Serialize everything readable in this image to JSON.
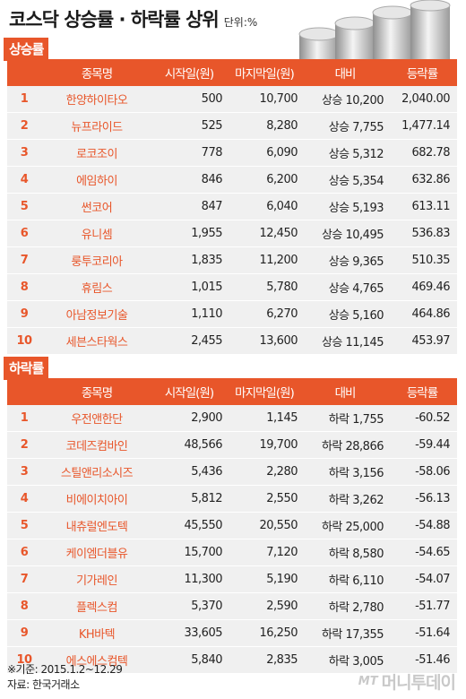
{
  "header": {
    "title": "코스닥 상승률 · 하락률 상위",
    "unit": "단위:%"
  },
  "columns": {
    "rank": "",
    "name": "종목명",
    "start": "시작일(원)",
    "end": "마지막일(원)",
    "diff": "대비",
    "rate": "등락률"
  },
  "gainers": {
    "label": "상승률",
    "rows": [
      {
        "rank": "1",
        "name": "한양하이타오",
        "start": "500",
        "end": "10,700",
        "diff": "상승 10,200",
        "rate": "2,040.00"
      },
      {
        "rank": "2",
        "name": "뉴프라이드",
        "start": "525",
        "end": "8,280",
        "diff": "상승 7,755",
        "rate": "1,477.14"
      },
      {
        "rank": "3",
        "name": "로코조이",
        "start": "778",
        "end": "6,090",
        "diff": "상승 5,312",
        "rate": "682.78"
      },
      {
        "rank": "4",
        "name": "에임하이",
        "start": "846",
        "end": "6,200",
        "diff": "상승 5,354",
        "rate": "632.86"
      },
      {
        "rank": "5",
        "name": "썬코어",
        "start": "847",
        "end": "6,040",
        "diff": "상승 5,193",
        "rate": "613.11"
      },
      {
        "rank": "6",
        "name": "유니셈",
        "start": "1,955",
        "end": "12,450",
        "diff": "상승 10,495",
        "rate": "536.83"
      },
      {
        "rank": "7",
        "name": "룽투코리아",
        "start": "1,835",
        "end": "11,200",
        "diff": "상승 9,365",
        "rate": "510.35"
      },
      {
        "rank": "8",
        "name": "휴림스",
        "start": "1,015",
        "end": "5,780",
        "diff": "상승 4,765",
        "rate": "469.46"
      },
      {
        "rank": "9",
        "name": "아남정보기술",
        "start": "1,110",
        "end": "6,270",
        "diff": "상승 5,160",
        "rate": "464.86"
      },
      {
        "rank": "10",
        "name": "세븐스타웍스",
        "start": "2,455",
        "end": "13,600",
        "diff": "상승 11,145",
        "rate": "453.97"
      }
    ]
  },
  "losers": {
    "label": "하락률",
    "rows": [
      {
        "rank": "1",
        "name": "우전앤한단",
        "start": "2,900",
        "end": "1,145",
        "diff": "하락 1,755",
        "rate": "-60.52"
      },
      {
        "rank": "2",
        "name": "코데즈컴바인",
        "start": "48,566",
        "end": "19,700",
        "diff": "하락 28,866",
        "rate": "-59.44"
      },
      {
        "rank": "3",
        "name": "스틸앤리소시즈",
        "start": "5,436",
        "end": "2,280",
        "diff": "하락 3,156",
        "rate": "-58.06"
      },
      {
        "rank": "4",
        "name": "비에이치아이",
        "start": "5,812",
        "end": "2,550",
        "diff": "하락 3,262",
        "rate": "-56.13"
      },
      {
        "rank": "5",
        "name": "내츄럴엔도텍",
        "start": "45,550",
        "end": "20,550",
        "diff": "하락 25,000",
        "rate": "-54.88"
      },
      {
        "rank": "6",
        "name": "케이엠더블유",
        "start": "15,700",
        "end": "7,120",
        "diff": "하락 8,580",
        "rate": "-54.65"
      },
      {
        "rank": "7",
        "name": "기가레인",
        "start": "11,300",
        "end": "5,190",
        "diff": "하락 6,110",
        "rate": "-54.07"
      },
      {
        "rank": "8",
        "name": "플렉스컴",
        "start": "5,370",
        "end": "2,590",
        "diff": "하락 2,780",
        "rate": "-51.77"
      },
      {
        "rank": "9",
        "name": "KH바텍",
        "start": "33,605",
        "end": "16,250",
        "diff": "하락 17,355",
        "rate": "-51.64"
      },
      {
        "rank": "10",
        "name": "에스에스컴텍",
        "start": "5,840",
        "end": "2,835",
        "diff": "하락 3,005",
        "rate": "-51.46"
      }
    ]
  },
  "footer": {
    "basis": "※기준: 2015.1.2~12.29",
    "source": "자료: 한국거래소"
  },
  "logo": {
    "mt": "MT",
    "text": "머니투데이"
  },
  "colors": {
    "accent": "#e8562a",
    "row_bg": "#f0f0f0",
    "logo": "#c9c9c9"
  },
  "icons": {
    "coins": "stacked-coins-illustration"
  }
}
